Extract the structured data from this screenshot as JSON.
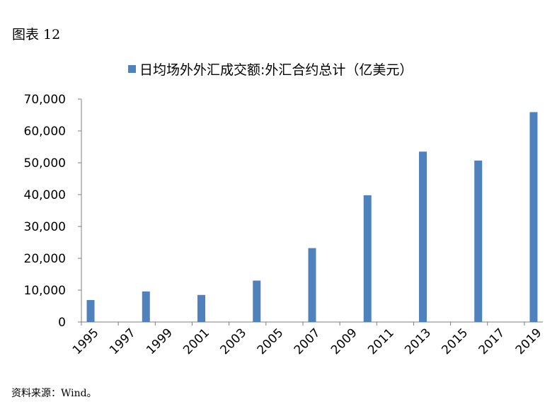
{
  "figure_label": "图表 12",
  "source_note": "资料来源：Wind。",
  "colors": {
    "bar": "#4f81bd",
    "axis": "#7f7f7f"
  },
  "chart_data": {
    "type": "bar",
    "title": "",
    "xlabel": "",
    "ylabel": "",
    "ylim": [
      0,
      70000
    ],
    "yticks": [
      0,
      10000,
      20000,
      30000,
      40000,
      50000,
      60000,
      70000
    ],
    "ytick_labels": [
      "0",
      "10,000",
      "20,000",
      "30,000",
      "40,000",
      "50,000",
      "60,000",
      "70,000"
    ],
    "xtick_labels": [
      "1995",
      "1997",
      "1999",
      "2001",
      "2003",
      "2005",
      "2007",
      "2009",
      "2011",
      "2013",
      "2015",
      "2017",
      "2019"
    ],
    "categories": [
      "1995",
      "1998",
      "2001",
      "2004",
      "2007",
      "2010",
      "2013",
      "2016",
      "2019"
    ],
    "series": [
      {
        "name": "日均场外外汇成交额:外汇合约总计（亿美元）",
        "values": [
          6900,
          9600,
          8500,
          13000,
          23200,
          39800,
          53500,
          50700,
          65900
        ]
      }
    ],
    "grid": false,
    "legend": "top-center"
  }
}
